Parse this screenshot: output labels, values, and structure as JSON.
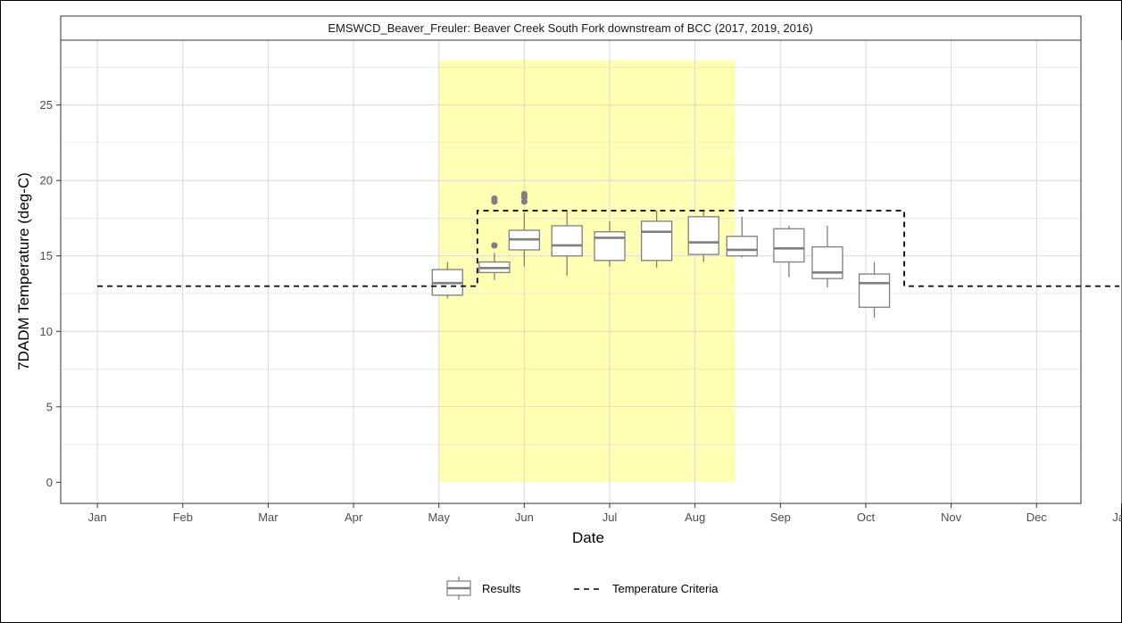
{
  "chart_data": {
    "type": "box",
    "title": "EMSWCD_Beaver_Freuler: Beaver Creek South Fork downstream of BCC (2017, 2019, 2016)",
    "xlabel": "Date",
    "ylabel": "7DADM Temperature (deg-C)",
    "x_ticks": [
      "Jan",
      "Feb",
      "Mar",
      "Apr",
      "May",
      "Jun",
      "Jul",
      "Aug",
      "Sep",
      "Oct",
      "Nov",
      "Dec",
      "Jan"
    ],
    "y_ticks": [
      0,
      5,
      10,
      15,
      20,
      25
    ],
    "xlim": [
      0.57,
      12.52
    ],
    "ylim": [
      -1.4,
      29.3
    ],
    "grid": true,
    "highlight": {
      "x_start": 5.0,
      "x_end": 8.47,
      "y_start": 0,
      "y_end": 28,
      "color": "#ffffb3"
    },
    "criteria": {
      "name": "Temperature Criteria",
      "points": [
        [
          1,
          13
        ],
        [
          5.45,
          13
        ],
        [
          5.45,
          18
        ],
        [
          10.45,
          18
        ],
        [
          10.45,
          13
        ],
        [
          12.97,
          13
        ]
      ]
    },
    "boxes": [
      {
        "x": 5.1,
        "whislo": 12.2,
        "q1": 12.4,
        "med": 13.2,
        "q3": 14.1,
        "whishi": 14.6,
        "fliers": []
      },
      {
        "x": 5.65,
        "whislo": 13.4,
        "q1": 13.9,
        "med": 14.2,
        "q3": 14.6,
        "whishi": 15.2,
        "fliers": [
          15.7,
          18.6,
          18.8
        ]
      },
      {
        "x": 6.0,
        "whislo": 14.3,
        "q1": 15.4,
        "med": 16.1,
        "q3": 16.7,
        "whishi": 17.9,
        "fliers": [
          18.6,
          18.9,
          19.1
        ]
      },
      {
        "x": 6.5,
        "whislo": 13.7,
        "q1": 15.0,
        "med": 15.7,
        "q3": 17.0,
        "whishi": 18.0,
        "fliers": []
      },
      {
        "x": 7.0,
        "whislo": 14.3,
        "q1": 14.7,
        "med": 16.2,
        "q3": 16.6,
        "whishi": 17.3,
        "fliers": []
      },
      {
        "x": 7.55,
        "whislo": 14.2,
        "q1": 14.7,
        "med": 16.6,
        "q3": 17.3,
        "whishi": 18.0,
        "fliers": []
      },
      {
        "x": 8.1,
        "whislo": 14.6,
        "q1": 15.1,
        "med": 15.9,
        "q3": 17.6,
        "whishi": 18.0,
        "fliers": []
      },
      {
        "x": 8.55,
        "whislo": 14.9,
        "q1": 15.0,
        "med": 15.4,
        "q3": 16.3,
        "whishi": 17.6,
        "fliers": []
      },
      {
        "x": 9.1,
        "whislo": 13.6,
        "q1": 14.6,
        "med": 15.5,
        "q3": 16.8,
        "whishi": 17.0,
        "fliers": []
      },
      {
        "x": 9.55,
        "whislo": 12.9,
        "q1": 13.5,
        "med": 13.9,
        "q3": 15.6,
        "whishi": 17.0,
        "fliers": []
      },
      {
        "x": 10.1,
        "whislo": 10.9,
        "q1": 11.6,
        "med": 13.2,
        "q3": 13.8,
        "whishi": 14.6,
        "fliers": []
      }
    ],
    "legend": {
      "placement": "bottom",
      "entries": [
        {
          "label": "Results",
          "kind": "box"
        },
        {
          "label": "Temperature Criteria",
          "kind": "dashed-line"
        }
      ]
    },
    "colors": {
      "box": "#7f7f7f",
      "criteria": "#000000",
      "grid": "#d9d9d9"
    }
  }
}
